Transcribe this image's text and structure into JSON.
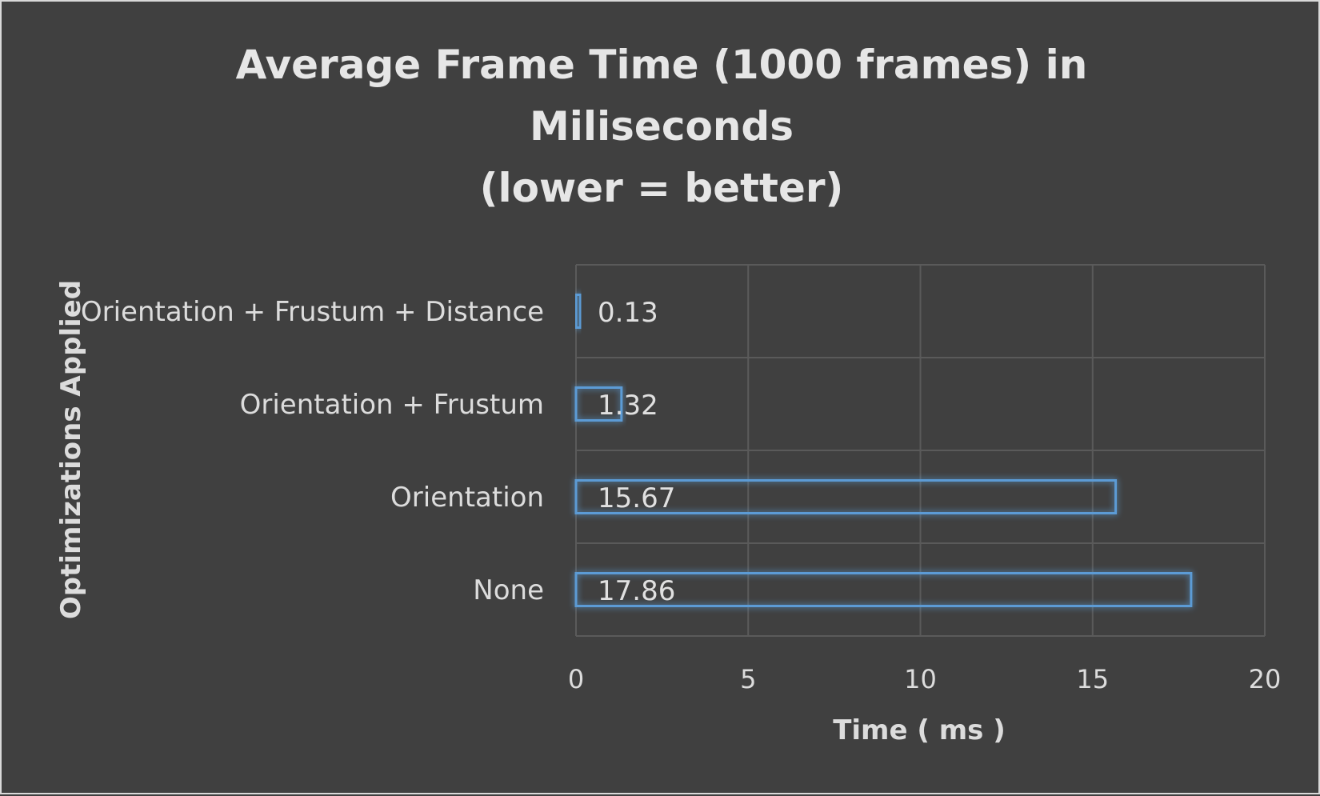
{
  "chart_data": {
    "type": "bar",
    "orientation": "horizontal",
    "title": [
      "Average Frame Time (1000 frames) in",
      "Miliseconds",
      "(lower = better)"
    ],
    "xlabel": "Time ( ms )",
    "ylabel": "Optimizations Applied",
    "categories": [
      "None",
      "Orientation",
      "Orientation + Frustum",
      "Orientation + Frustum + Distance"
    ],
    "values": [
      17.86,
      15.67,
      1.32,
      0.13
    ],
    "value_labels": [
      "17.86",
      "15.67",
      "1.32",
      "0.13"
    ],
    "xlim": [
      0,
      20
    ],
    "xticks": [
      "0",
      "5",
      "10",
      "15",
      "20"
    ],
    "xtick_values": [
      0,
      5,
      10,
      15,
      20
    ],
    "grid": true,
    "legend": "none",
    "colors": {
      "background": "#404040",
      "bar_outline": "#5b9bd5",
      "text": "#dcdcdc",
      "grid": "#5a5a5a",
      "border": "#d9d9d9"
    }
  }
}
